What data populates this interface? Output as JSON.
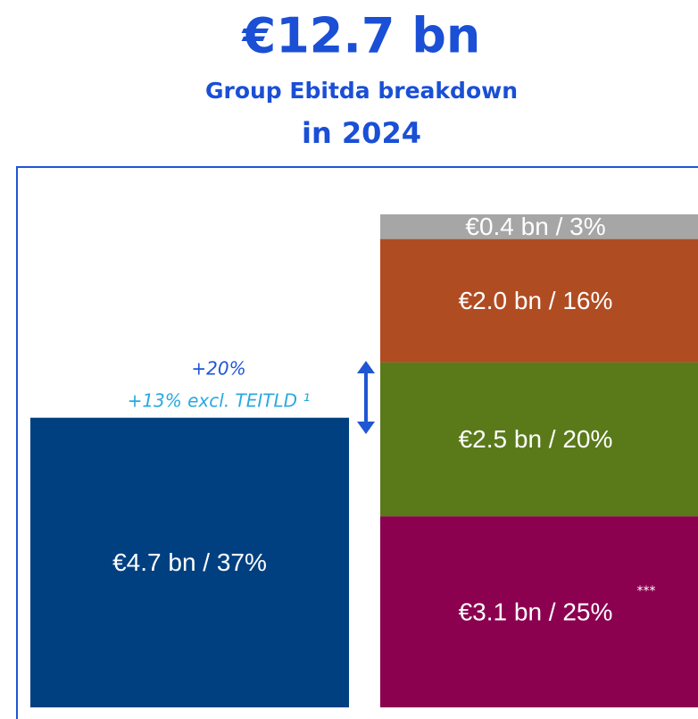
{
  "chart_data": {
    "type": "bar",
    "title": "€12.7 bn",
    "subtitle": [
      "Group Ebitda breakdown",
      "in 2024"
    ],
    "bars": [
      {
        "segments": [
          {
            "value": 4.7,
            "value_label": "€4.7 bn / 37%",
            "color": "#004080"
          }
        ]
      },
      {
        "segments": [
          {
            "value": 3.1,
            "value_label": "€3.1 bn / 25%",
            "color": "#8c0050"
          },
          {
            "value": 2.5,
            "value_label": "€2.5 bn / 20%",
            "color": "#5a7a1a"
          },
          {
            "value": 2.0,
            "value_label": "€2.0 bn / 16%",
            "color": "#b04c22"
          },
          {
            "value": 0.4,
            "value_label": "€0.4 bn / 3%",
            "color": "#a6a6a6"
          }
        ]
      }
    ],
    "annotations": [
      "+20%",
      "+13% excl. TEITLD ¹",
      "***"
    ]
  }
}
